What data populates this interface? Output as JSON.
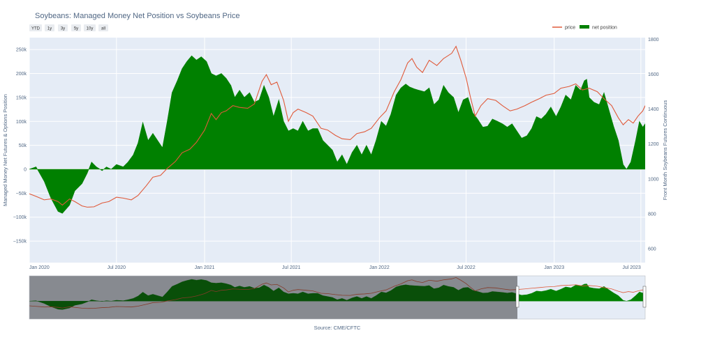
{
  "chart_data": {
    "type": "area",
    "title": "Soybeans: Managed Money Net Position vs Soybeans Price",
    "range_buttons": [
      "YTD",
      "1y",
      "3y",
      "5y",
      "10y",
      "all"
    ],
    "ylabel_left": "Managed Money Net Futures & Options Position",
    "ylabel_right": "Front Month Soybeans Futures Continuous",
    "source": "Source: CME/CFTC",
    "legend_placement": "top-right",
    "grid": true,
    "x_range": [
      "2020-01-01",
      "2023-07-10"
    ],
    "y_left_range": [
      -195000,
      275000
    ],
    "y_right_range": [
      520,
      1810
    ],
    "x_ticks": [
      {
        "date": "2020-01-01",
        "label": "Jan 2020"
      },
      {
        "date": "2020-07-01",
        "label": "Jul 2020"
      },
      {
        "date": "2021-01-01",
        "label": "Jan 2021"
      },
      {
        "date": "2021-07-01",
        "label": "Jul 2021"
      },
      {
        "date": "2022-01-01",
        "label": "Jan 2022"
      },
      {
        "date": "2022-07-01",
        "label": "Jul 2022"
      },
      {
        "date": "2023-01-01",
        "label": "Jan 2023"
      },
      {
        "date": "2023-07-01",
        "label": "Jul 2023"
      }
    ],
    "y_left_ticks": [
      {
        "value": 250000,
        "label": "250k"
      },
      {
        "value": 200000,
        "label": "200k"
      },
      {
        "value": 150000,
        "label": "150k"
      },
      {
        "value": 100000,
        "label": "100k"
      },
      {
        "value": 50000,
        "label": "50k"
      },
      {
        "value": 0,
        "label": "0"
      },
      {
        "value": -50000,
        "label": "−50k"
      },
      {
        "value": -100000,
        "label": "−100k"
      },
      {
        "value": -150000,
        "label": "−150k"
      }
    ],
    "y_right_ticks": [
      {
        "value": 1800,
        "label": "1800"
      },
      {
        "value": 1600,
        "label": "1600"
      },
      {
        "value": 1400,
        "label": "1400"
      },
      {
        "value": 1200,
        "label": "1200"
      },
      {
        "value": 1000,
        "label": "1000"
      },
      {
        "value": 800,
        "label": "800"
      },
      {
        "value": 600,
        "label": "600"
      }
    ],
    "series": [
      {
        "name": "net position",
        "axis": "left",
        "color": "#008000",
        "points": [
          [
            "2020-01-01",
            0
          ],
          [
            "2020-01-15",
            5000
          ],
          [
            "2020-02-01",
            -25000
          ],
          [
            "2020-02-15",
            -60000
          ],
          [
            "2020-03-01",
            -88000
          ],
          [
            "2020-03-10",
            -92000
          ],
          [
            "2020-03-25",
            -75000
          ],
          [
            "2020-04-05",
            -45000
          ],
          [
            "2020-04-20",
            -30000
          ],
          [
            "2020-05-01",
            -8000
          ],
          [
            "2020-05-10",
            15000
          ],
          [
            "2020-05-20",
            5000
          ],
          [
            "2020-06-01",
            -3000
          ],
          [
            "2020-06-10",
            5000
          ],
          [
            "2020-06-20",
            0
          ],
          [
            "2020-07-01",
            10000
          ],
          [
            "2020-07-15",
            5000
          ],
          [
            "2020-07-25",
            15000
          ],
          [
            "2020-08-05",
            30000
          ],
          [
            "2020-08-15",
            55000
          ],
          [
            "2020-08-25",
            98000
          ],
          [
            "2020-09-05",
            60000
          ],
          [
            "2020-09-15",
            75000
          ],
          [
            "2020-09-25",
            60000
          ],
          [
            "2020-10-05",
            45000
          ],
          [
            "2020-10-15",
            100000
          ],
          [
            "2020-10-25",
            160000
          ],
          [
            "2020-11-05",
            185000
          ],
          [
            "2020-11-15",
            210000
          ],
          [
            "2020-11-25",
            225000
          ],
          [
            "2020-12-05",
            237000
          ],
          [
            "2020-12-15",
            228000
          ],
          [
            "2020-12-25",
            235000
          ],
          [
            "2021-01-05",
            225000
          ],
          [
            "2021-01-15",
            200000
          ],
          [
            "2021-01-25",
            195000
          ],
          [
            "2021-02-05",
            200000
          ],
          [
            "2021-02-15",
            190000
          ],
          [
            "2021-02-25",
            175000
          ],
          [
            "2021-03-05",
            150000
          ],
          [
            "2021-03-15",
            165000
          ],
          [
            "2021-03-25",
            150000
          ],
          [
            "2021-04-05",
            160000
          ],
          [
            "2021-04-15",
            140000
          ],
          [
            "2021-04-25",
            145000
          ],
          [
            "2021-05-05",
            175000
          ],
          [
            "2021-05-15",
            150000
          ],
          [
            "2021-05-25",
            110000
          ],
          [
            "2021-06-05",
            145000
          ],
          [
            "2021-06-15",
            100000
          ],
          [
            "2021-06-25",
            80000
          ],
          [
            "2021-07-05",
            85000
          ],
          [
            "2021-07-15",
            80000
          ],
          [
            "2021-07-25",
            100000
          ],
          [
            "2021-08-05",
            80000
          ],
          [
            "2021-08-15",
            85000
          ],
          [
            "2021-08-25",
            85000
          ],
          [
            "2021-09-05",
            60000
          ],
          [
            "2021-09-15",
            50000
          ],
          [
            "2021-09-25",
            40000
          ],
          [
            "2021-10-05",
            15000
          ],
          [
            "2021-10-15",
            30000
          ],
          [
            "2021-10-25",
            10000
          ],
          [
            "2021-11-05",
            35000
          ],
          [
            "2021-11-15",
            50000
          ],
          [
            "2021-11-25",
            30000
          ],
          [
            "2021-12-05",
            50000
          ],
          [
            "2021-12-15",
            30000
          ],
          [
            "2021-12-25",
            60000
          ],
          [
            "2022-01-05",
            100000
          ],
          [
            "2022-01-15",
            90000
          ],
          [
            "2022-01-25",
            115000
          ],
          [
            "2022-02-05",
            155000
          ],
          [
            "2022-02-15",
            170000
          ],
          [
            "2022-02-25",
            178000
          ],
          [
            "2022-03-05",
            172000
          ],
          [
            "2022-03-15",
            168000
          ],
          [
            "2022-03-25",
            165000
          ],
          [
            "2022-04-05",
            162000
          ],
          [
            "2022-04-15",
            170000
          ],
          [
            "2022-04-25",
            135000
          ],
          [
            "2022-05-05",
            145000
          ],
          [
            "2022-05-15",
            175000
          ],
          [
            "2022-05-25",
            160000
          ],
          [
            "2022-06-05",
            150000
          ],
          [
            "2022-06-15",
            118000
          ],
          [
            "2022-06-25",
            145000
          ],
          [
            "2022-07-05",
            150000
          ],
          [
            "2022-07-15",
            118000
          ],
          [
            "2022-07-25",
            105000
          ],
          [
            "2022-08-05",
            88000
          ],
          [
            "2022-08-15",
            90000
          ],
          [
            "2022-08-25",
            105000
          ],
          [
            "2022-09-05",
            100000
          ],
          [
            "2022-09-15",
            95000
          ],
          [
            "2022-09-25",
            88000
          ],
          [
            "2022-10-05",
            95000
          ],
          [
            "2022-10-15",
            80000
          ],
          [
            "2022-10-25",
            65000
          ],
          [
            "2022-11-05",
            70000
          ],
          [
            "2022-11-15",
            85000
          ],
          [
            "2022-11-25",
            110000
          ],
          [
            "2022-12-05",
            105000
          ],
          [
            "2022-12-15",
            115000
          ],
          [
            "2022-12-25",
            130000
          ],
          [
            "2023-01-05",
            110000
          ],
          [
            "2023-01-15",
            130000
          ],
          [
            "2023-01-25",
            155000
          ],
          [
            "2023-02-05",
            145000
          ],
          [
            "2023-02-15",
            175000
          ],
          [
            "2023-02-25",
            165000
          ],
          [
            "2023-03-05",
            185000
          ],
          [
            "2023-03-10",
            188000
          ],
          [
            "2023-03-15",
            150000
          ],
          [
            "2023-03-25",
            140000
          ],
          [
            "2023-04-05",
            135000
          ],
          [
            "2023-04-15",
            160000
          ],
          [
            "2023-04-25",
            125000
          ],
          [
            "2023-05-05",
            90000
          ],
          [
            "2023-05-15",
            60000
          ],
          [
            "2023-05-25",
            10000
          ],
          [
            "2023-06-01",
            0
          ],
          [
            "2023-06-10",
            15000
          ],
          [
            "2023-06-20",
            60000
          ],
          [
            "2023-06-28",
            100000
          ],
          [
            "2023-07-05",
            88000
          ],
          [
            "2023-07-10",
            95000
          ]
        ]
      },
      {
        "name": "price",
        "axis": "right",
        "color": "#e05a3a",
        "points": [
          [
            "2020-01-01",
            915
          ],
          [
            "2020-01-15",
            900
          ],
          [
            "2020-02-01",
            880
          ],
          [
            "2020-02-15",
            885
          ],
          [
            "2020-03-01",
            870
          ],
          [
            "2020-03-10",
            850
          ],
          [
            "2020-03-25",
            885
          ],
          [
            "2020-04-05",
            870
          ],
          [
            "2020-04-20",
            845
          ],
          [
            "2020-05-01",
            838
          ],
          [
            "2020-05-15",
            840
          ],
          [
            "2020-06-01",
            862
          ],
          [
            "2020-06-15",
            870
          ],
          [
            "2020-07-01",
            895
          ],
          [
            "2020-07-15",
            890
          ],
          [
            "2020-08-01",
            880
          ],
          [
            "2020-08-15",
            905
          ],
          [
            "2020-09-01",
            960
          ],
          [
            "2020-09-15",
            1010
          ],
          [
            "2020-10-01",
            1020
          ],
          [
            "2020-10-15",
            1060
          ],
          [
            "2020-11-01",
            1100
          ],
          [
            "2020-11-15",
            1150
          ],
          [
            "2020-12-01",
            1170
          ],
          [
            "2020-12-15",
            1210
          ],
          [
            "2021-01-01",
            1280
          ],
          [
            "2021-01-15",
            1375
          ],
          [
            "2021-01-25",
            1340
          ],
          [
            "2021-02-05",
            1380
          ],
          [
            "2021-02-15",
            1390
          ],
          [
            "2021-03-01",
            1420
          ],
          [
            "2021-03-15",
            1410
          ],
          [
            "2021-04-01",
            1405
          ],
          [
            "2021-04-15",
            1430
          ],
          [
            "2021-05-01",
            1560
          ],
          [
            "2021-05-10",
            1598
          ],
          [
            "2021-05-20",
            1540
          ],
          [
            "2021-06-01",
            1555
          ],
          [
            "2021-06-15",
            1450
          ],
          [
            "2021-06-25",
            1330
          ],
          [
            "2021-07-05",
            1380
          ],
          [
            "2021-07-15",
            1400
          ],
          [
            "2021-08-01",
            1380
          ],
          [
            "2021-08-15",
            1360
          ],
          [
            "2021-09-01",
            1290
          ],
          [
            "2021-09-15",
            1280
          ],
          [
            "2021-10-01",
            1250
          ],
          [
            "2021-10-15",
            1230
          ],
          [
            "2021-11-01",
            1225
          ],
          [
            "2021-11-15",
            1260
          ],
          [
            "2021-12-01",
            1270
          ],
          [
            "2021-12-15",
            1290
          ],
          [
            "2022-01-01",
            1350
          ],
          [
            "2022-01-15",
            1390
          ],
          [
            "2022-02-01",
            1500
          ],
          [
            "2022-02-15",
            1570
          ],
          [
            "2022-03-01",
            1665
          ],
          [
            "2022-03-10",
            1690
          ],
          [
            "2022-03-20",
            1640
          ],
          [
            "2022-04-01",
            1610
          ],
          [
            "2022-04-15",
            1680
          ],
          [
            "2022-05-01",
            1650
          ],
          [
            "2022-05-15",
            1690
          ],
          [
            "2022-06-01",
            1720
          ],
          [
            "2022-06-10",
            1760
          ],
          [
            "2022-06-20",
            1680
          ],
          [
            "2022-07-01",
            1580
          ],
          [
            "2022-07-10",
            1470
          ],
          [
            "2022-07-20",
            1360
          ],
          [
            "2022-08-01",
            1420
          ],
          [
            "2022-08-15",
            1460
          ],
          [
            "2022-09-01",
            1450
          ],
          [
            "2022-09-15",
            1420
          ],
          [
            "2022-10-01",
            1390
          ],
          [
            "2022-10-15",
            1400
          ],
          [
            "2022-11-01",
            1420
          ],
          [
            "2022-11-15",
            1440
          ],
          [
            "2022-12-01",
            1460
          ],
          [
            "2022-12-15",
            1480
          ],
          [
            "2023-01-01",
            1490
          ],
          [
            "2023-01-15",
            1520
          ],
          [
            "2023-02-01",
            1530
          ],
          [
            "2023-02-15",
            1545
          ],
          [
            "2023-03-01",
            1510
          ],
          [
            "2023-03-15",
            1520
          ],
          [
            "2023-04-01",
            1500
          ],
          [
            "2023-04-15",
            1460
          ],
          [
            "2023-05-01",
            1420
          ],
          [
            "2023-05-15",
            1350
          ],
          [
            "2023-05-25",
            1310
          ],
          [
            "2023-06-05",
            1340
          ],
          [
            "2023-06-15",
            1320
          ],
          [
            "2023-06-25",
            1360
          ],
          [
            "2023-07-05",
            1390
          ],
          [
            "2023-07-10",
            1420
          ]
        ]
      }
    ]
  }
}
